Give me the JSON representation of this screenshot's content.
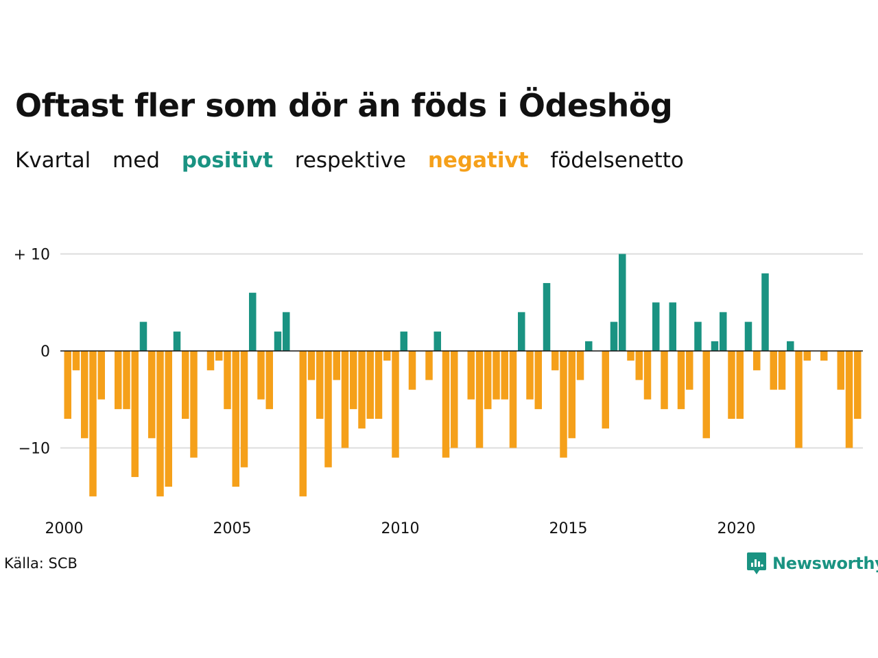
{
  "title": "Oftast fler som dör än föds i Ödeshög",
  "subtitle": {
    "w1": "Kvartal",
    "w2": "med",
    "positive": "positivt",
    "w3": "respektive",
    "negative": "negativt",
    "w4": "födelsenetto"
  },
  "source": "Källa: SCB",
  "brand": {
    "name": "Newsworthy",
    "icon": "newsworthy-logo-icon"
  },
  "colors": {
    "positive": "#1a9382",
    "negative": "#f5a01a",
    "grid": "#dddddd",
    "zero_line": "#111111"
  },
  "chart_data": {
    "type": "bar",
    "title": "Oftast fler som dör än föds i Ödeshög",
    "xlabel": "",
    "ylabel": "",
    "ylim": [
      -15,
      10
    ],
    "yticks": [
      {
        "value": 10,
        "label": "+ 10"
      },
      {
        "value": 0,
        "label": "0"
      },
      {
        "value": -10,
        "label": "−10"
      }
    ],
    "xticks": [
      "2000",
      "2005",
      "2010",
      "2015",
      "2020"
    ],
    "grid": true,
    "start_year": 2000,
    "series": [
      {
        "values": [
          -7,
          -2,
          -9,
          -15,
          -5,
          0,
          -6,
          -6,
          -13,
          3,
          -9,
          -15,
          -14,
          2,
          -7,
          -11,
          0,
          -2,
          -1,
          -6,
          -14,
          -12,
          6,
          -5,
          -6,
          2,
          4,
          0,
          -15,
          -3,
          -7,
          -12,
          -3,
          -10,
          -6,
          -8,
          -7,
          -7,
          -1,
          -11,
          2,
          -4,
          0,
          -3,
          2,
          -11,
          -10,
          0,
          -5,
          -10,
          -6,
          -5,
          -5,
          -10,
          4,
          -5,
          -6,
          7,
          -2,
          -11,
          -9,
          -3,
          1,
          0,
          -8,
          3,
          10,
          -1,
          -3,
          -5,
          5,
          -6,
          5,
          -6,
          -4,
          3,
          -9,
          1,
          4,
          -7,
          -7,
          3,
          -2,
          8,
          -4,
          -4,
          1,
          -10,
          -1,
          0,
          -1,
          0,
          -4,
          -10,
          -7
        ]
      }
    ]
  }
}
